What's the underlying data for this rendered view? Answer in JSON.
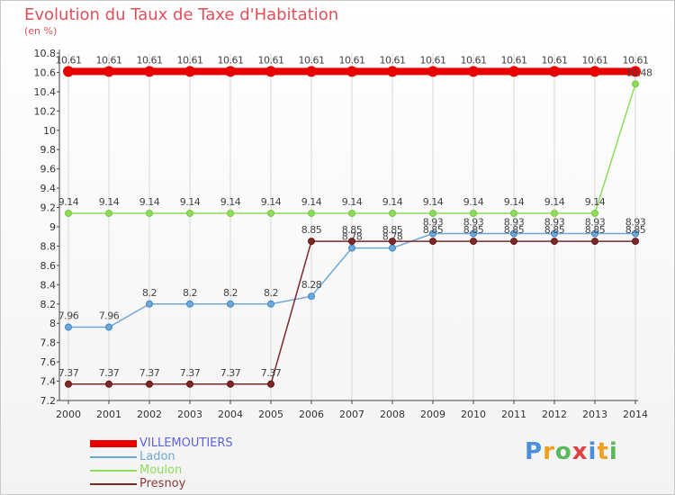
{
  "title": "Evolution du Taux de Taxe d'Habitation",
  "subtitle": "(en %)",
  "brand": {
    "letters": [
      {
        "ch": "P",
        "color": "#4a8fd8"
      },
      {
        "ch": "r",
        "color": "#f0a020"
      },
      {
        "ch": "o",
        "color": "#5cb85c"
      },
      {
        "ch": "x",
        "color": "#e04040"
      },
      {
        "ch": "i",
        "color": "#4a8fd8"
      },
      {
        "ch": "t",
        "color": "#f0a020"
      },
      {
        "ch": "i",
        "color": "#5cb85c"
      }
    ]
  },
  "chart_data": {
    "type": "line",
    "title": "Evolution du Taux de Taxe d'Habitation",
    "ylabel": "(en %)",
    "xlabel": "",
    "x": [
      "2000",
      "2001",
      "2002",
      "2003",
      "2004",
      "2005",
      "2006",
      "2007",
      "2008",
      "2009",
      "2010",
      "2011",
      "2012",
      "2013",
      "2014"
    ],
    "ylim": [
      7.2,
      10.8
    ],
    "yticks": [
      "7.2",
      "7.4",
      "7.6",
      "7.8",
      "8",
      "8.2",
      "8.4",
      "8.6",
      "8.8",
      "9",
      "9.2",
      "9.4",
      "9.6",
      "9.8",
      "10",
      "10.2",
      "10.4",
      "10.6",
      "10.8"
    ],
    "grid": "vertical",
    "legend_position": "bottom-left",
    "series": [
      {
        "name": "VILLEMOUTIERS",
        "color": "#e80000",
        "width": 8,
        "values": [
          10.61,
          10.61,
          10.61,
          10.61,
          10.61,
          10.61,
          10.61,
          10.61,
          10.61,
          10.61,
          10.61,
          10.61,
          10.61,
          10.61,
          10.61
        ],
        "labels": [
          "10.61",
          "10.61",
          "10.61",
          "10.61",
          "10.61",
          "10.61",
          "10.61",
          "10.61",
          "10.61",
          "10.61",
          "10.61",
          "10.61",
          "10.61",
          "10.61",
          "10.61"
        ]
      },
      {
        "name": "Ladon",
        "color": "#6fa8d8",
        "width": 1.5,
        "values": [
          7.96,
          7.96,
          8.2,
          8.2,
          8.2,
          8.2,
          8.28,
          8.78,
          8.78,
          8.93,
          8.93,
          8.93,
          8.93,
          8.93,
          8.93
        ],
        "labels": [
          "7.96",
          "7.96",
          "8.2",
          "8.2",
          "8.2",
          "8.2",
          "8.28",
          "8.78",
          "8.78",
          "8.93",
          "8.93",
          "8.93",
          "8.93",
          "8.93",
          "8.93"
        ]
      },
      {
        "name": "Moulon",
        "color": "#8fdc5a",
        "width": 1.5,
        "values": [
          9.14,
          9.14,
          9.14,
          9.14,
          9.14,
          9.14,
          9.14,
          9.14,
          9.14,
          9.14,
          9.14,
          9.14,
          9.14,
          9.14,
          10.48
        ],
        "labels": [
          "9.14",
          "9.14",
          "9.14",
          "9.14",
          "9.14",
          "9.14",
          "9.14",
          "9.14",
          "9.14",
          "9.14",
          "9.14",
          "9.14",
          "9.14",
          "9.14",
          "10.48"
        ]
      },
      {
        "name": "Presnoy",
        "color": "#7a2a2a",
        "width": 1.5,
        "values": [
          7.37,
          7.37,
          7.37,
          7.37,
          7.37,
          7.37,
          8.85,
          8.85,
          8.85,
          8.85,
          8.85,
          8.85,
          8.85,
          8.85,
          8.85
        ],
        "labels": [
          "7.37",
          "7.37",
          "7.37",
          "7.37",
          "7.37",
          "7.37",
          "8.85",
          "8.85",
          "8.85",
          "8.85",
          "8.85",
          "8.85",
          "8.85",
          "8.85",
          "8.85"
        ]
      }
    ],
    "legend_text_colors": [
      "#6060e0",
      "#6fa8d8",
      "#8fdc5a",
      "#8a3a3a"
    ],
    "marker_colors": [
      "#e80000",
      "#3f86c6",
      "#7cc640",
      "#6a1010"
    ]
  }
}
